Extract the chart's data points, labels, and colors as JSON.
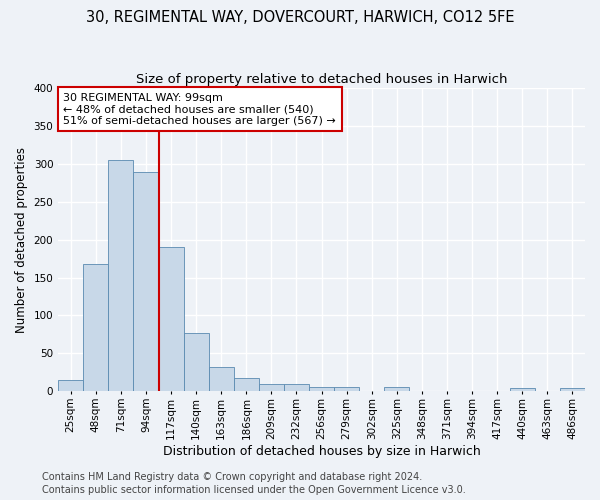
{
  "title1": "30, REGIMENTAL WAY, DOVERCOURT, HARWICH, CO12 5FE",
  "title2": "Size of property relative to detached houses in Harwich",
  "xlabel": "Distribution of detached houses by size in Harwich",
  "ylabel": "Number of detached properties",
  "categories": [
    "25sqm",
    "48sqm",
    "71sqm",
    "94sqm",
    "117sqm",
    "140sqm",
    "163sqm",
    "186sqm",
    "209sqm",
    "232sqm",
    "256sqm",
    "279sqm",
    "302sqm",
    "325sqm",
    "348sqm",
    "371sqm",
    "394sqm",
    "417sqm",
    "440sqm",
    "463sqm",
    "486sqm"
  ],
  "values": [
    15,
    168,
    305,
    289,
    190,
    77,
    32,
    18,
    10,
    9,
    5,
    6,
    0,
    5,
    0,
    0,
    0,
    0,
    4,
    0,
    4
  ],
  "bar_color": "#c8d8e8",
  "bar_edge_color": "#5a8ab0",
  "bar_width": 1.0,
  "property_bar_index": 3,
  "vline_color": "#cc0000",
  "annotation_line1": "30 REGIMENTAL WAY: 99sqm",
  "annotation_line2": "← 48% of detached houses are smaller (540)",
  "annotation_line3": "51% of semi-detached houses are larger (567) →",
  "annotation_box_color": "white",
  "annotation_box_edge_color": "#cc0000",
  "footer1": "Contains HM Land Registry data © Crown copyright and database right 2024.",
  "footer2": "Contains public sector information licensed under the Open Government Licence v3.0.",
  "bg_color": "#eef2f7",
  "plot_bg_color": "#eef2f7",
  "grid_color": "#ffffff",
  "ylim": [
    0,
    400
  ],
  "yticks": [
    0,
    50,
    100,
    150,
    200,
    250,
    300,
    350,
    400
  ],
  "title1_fontsize": 10.5,
  "title2_fontsize": 9.5,
  "xlabel_fontsize": 9,
  "ylabel_fontsize": 8.5,
  "tick_fontsize": 7.5,
  "ann_fontsize": 8,
  "footer_fontsize": 7
}
